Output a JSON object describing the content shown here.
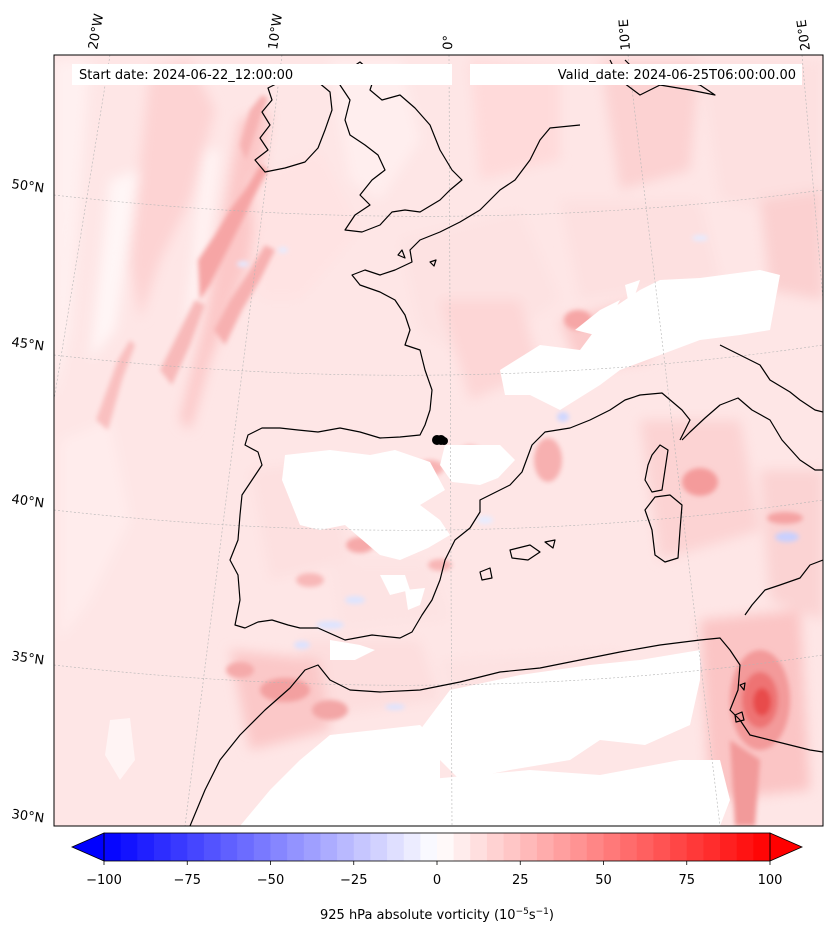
{
  "header": {
    "start_label": "Start date: 2024-06-22_12:00:00",
    "valid_label": "Valid_date: 2024-06-25T06:00:00.00"
  },
  "longitude_labels": [
    "20°W",
    "10°W",
    "0°",
    "10°E",
    "20°E"
  ],
  "latitude_labels": [
    "50°N",
    "45°N",
    "40°N",
    "35°N",
    "30°N"
  ],
  "colorbar": {
    "label": "925 hPa absolute vorticity (10$^{-5}$s$^{-1}$)",
    "label_main": "925 hPa absolute vorticity (10",
    "label_exp1": "−5",
    "label_mid": "s",
    "label_exp2": "−1",
    "label_end": ")",
    "range": [
      -100,
      100
    ],
    "ticks": [
      "−100",
      "−75",
      "−50",
      "−25",
      "0",
      "25",
      "50",
      "75",
      "100"
    ],
    "extend": "both",
    "colors": {
      "negative_end": "#0000ff",
      "positive_end": "#ff0000",
      "center": "#ffffff"
    }
  },
  "map_data": {
    "variable": "925 hPa absolute vorticity",
    "units": "10^-5 s^-1",
    "colormap": "bwr",
    "projection": "conic",
    "extent_lon": [
      -20,
      20
    ],
    "extent_lat": [
      30,
      52
    ],
    "marker": {
      "lon": -0.3,
      "lat": 42.1,
      "color": "#000000"
    }
  }
}
